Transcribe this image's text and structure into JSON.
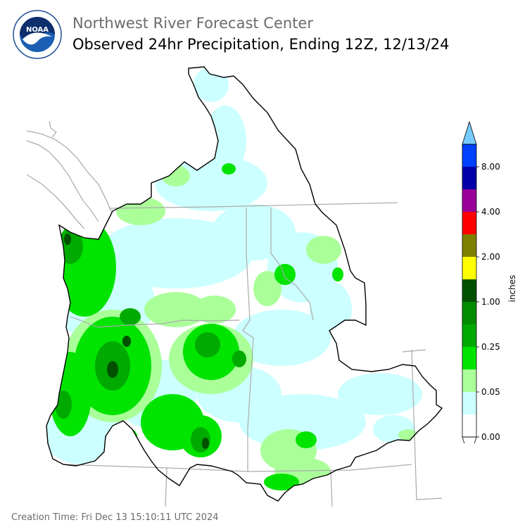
{
  "header": {
    "agency": "Northwest River Forecast Center",
    "title": "Observed 24hr Precipitation, Ending 12Z, 12/13/24"
  },
  "logo": {
    "text": "NOAA",
    "ring_text": "NATIONAL OCEANIC AND ATMOSPHERIC ADMINISTRATION U.S. DEPARTMENT OF COMMERCE"
  },
  "legend": {
    "unit_label": "inches",
    "tick_labels": [
      "0.00",
      "0.05",
      "0.25",
      "1.00",
      "2.00",
      "4.00",
      "8.00"
    ],
    "bins": [
      {
        "from": 0.0,
        "color": "#ffffff"
      },
      {
        "from": 0.01,
        "color": "#ccffff"
      },
      {
        "from": 0.05,
        "color": "#aaff99"
      },
      {
        "from": 0.1,
        "color": "#00e400"
      },
      {
        "from": 0.25,
        "color": "#00aa00"
      },
      {
        "from": 0.5,
        "color": "#008c00"
      },
      {
        "from": 0.75,
        "color": "#005000"
      },
      {
        "from": 1.0,
        "color": "#ffff00"
      },
      {
        "from": 1.5,
        "color": "#808000"
      },
      {
        "from": 2.0,
        "color": "#ff0000"
      },
      {
        "from": 3.0,
        "color": "#990099"
      },
      {
        "from": 4.0,
        "color": "#0000aa"
      },
      {
        "from": 6.0,
        "color": "#0040ff"
      },
      {
        "from": 8.0,
        "color": "#77ccff"
      }
    ]
  },
  "colors": {
    "basin_outline": "#000000",
    "state_borders": "#aaaaaa",
    "coastline": "#999999"
  },
  "footer": {
    "creation_time": "Creation Time: Fri Dec 13 15:10:11 UTC 2024"
  }
}
